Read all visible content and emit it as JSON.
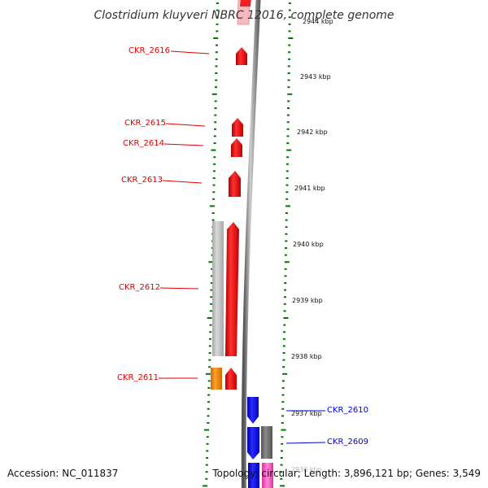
{
  "title": "Clostridium kluyveri NBRC 12016, complete genome",
  "footer": {
    "accession": "Accession: NC_011837",
    "topology": "Topology: circular; Length: 3,896,121 bp; Genes: 3,549"
  },
  "ticks": [
    {
      "label": "2944 kbp",
      "kbp": 2944
    },
    {
      "label": "2943 kbp",
      "kbp": 2943
    },
    {
      "label": "2942 kbp",
      "kbp": 2942
    },
    {
      "label": "2941 kbp",
      "kbp": 2941
    },
    {
      "label": "2940 kbp",
      "kbp": 2940
    },
    {
      "label": "2939 kbp",
      "kbp": 2939
    },
    {
      "label": "2938 kbp",
      "kbp": 2938
    },
    {
      "label": "2937 kbp",
      "kbp": 2937
    },
    {
      "label": "2936 kbp",
      "kbp": 2936
    }
  ],
  "genes": [
    {
      "name": "CKR_2616",
      "color": "#ee0000"
    },
    {
      "name": "CKR_2615",
      "color": "#ee0000"
    },
    {
      "name": "CKR_2614",
      "color": "#ee0000"
    },
    {
      "name": "CKR_2613",
      "color": "#ee0000"
    },
    {
      "name": "CKR_2612",
      "color": "#ee0000"
    },
    {
      "name": "CKR_2611",
      "color": "#ee0000"
    },
    {
      "name": "CKR_2610",
      "color": "#0000ee"
    },
    {
      "name": "CKR_2609",
      "color": "#0000ee"
    }
  ],
  "colors": {
    "forward_gene": "#ee0000",
    "reverse_gene": "#0000ee",
    "rna": "#f7a8b8",
    "other_feature": "#777777",
    "light_feature": "#bbbbbb",
    "orange_feature": "#ff8800",
    "pink_feature": "#ff55cc",
    "backbone": "#888888",
    "tick": "#007700"
  }
}
